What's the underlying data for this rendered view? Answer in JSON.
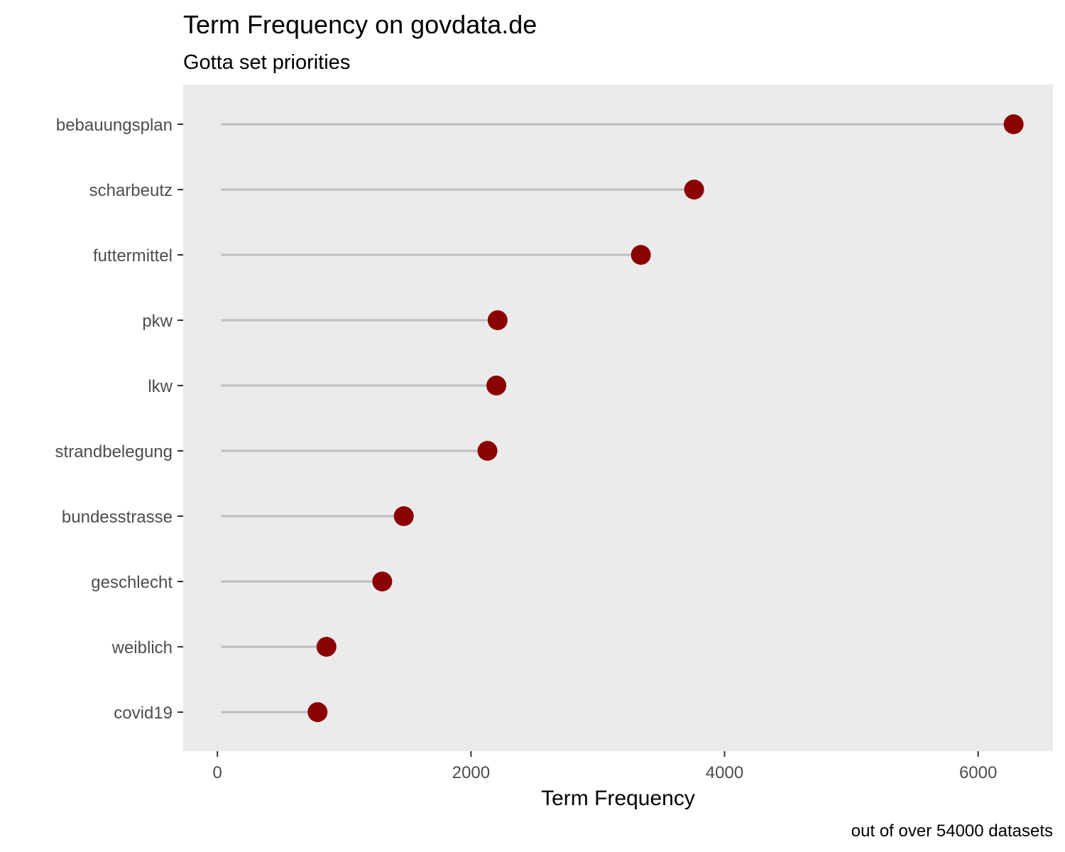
{
  "chart_data": {
    "type": "lollipop",
    "title": "Term Frequency on govdata.de",
    "subtitle": "Gotta set priorities",
    "xlabel": "Term Frequency",
    "ylabel": "",
    "caption": "out of over 54000 datasets",
    "categories": [
      "bebauungsplan",
      "scharbeutz",
      "futtermittel",
      "pkw",
      "lkw",
      "strandbelegung",
      "bundesstrasse",
      "geschlecht",
      "weiblich",
      "covid19"
    ],
    "values": [
      6280,
      3760,
      3340,
      2210,
      2200,
      2130,
      1470,
      1300,
      860,
      790
    ],
    "segment_start": 30,
    "xlim": [
      -270,
      6590
    ],
    "xticks": [
      0,
      2000,
      4000,
      6000
    ],
    "grid": false,
    "colors": {
      "point": "#8b0000",
      "segment": "#bebebe",
      "panel": "#ebebeb"
    }
  }
}
